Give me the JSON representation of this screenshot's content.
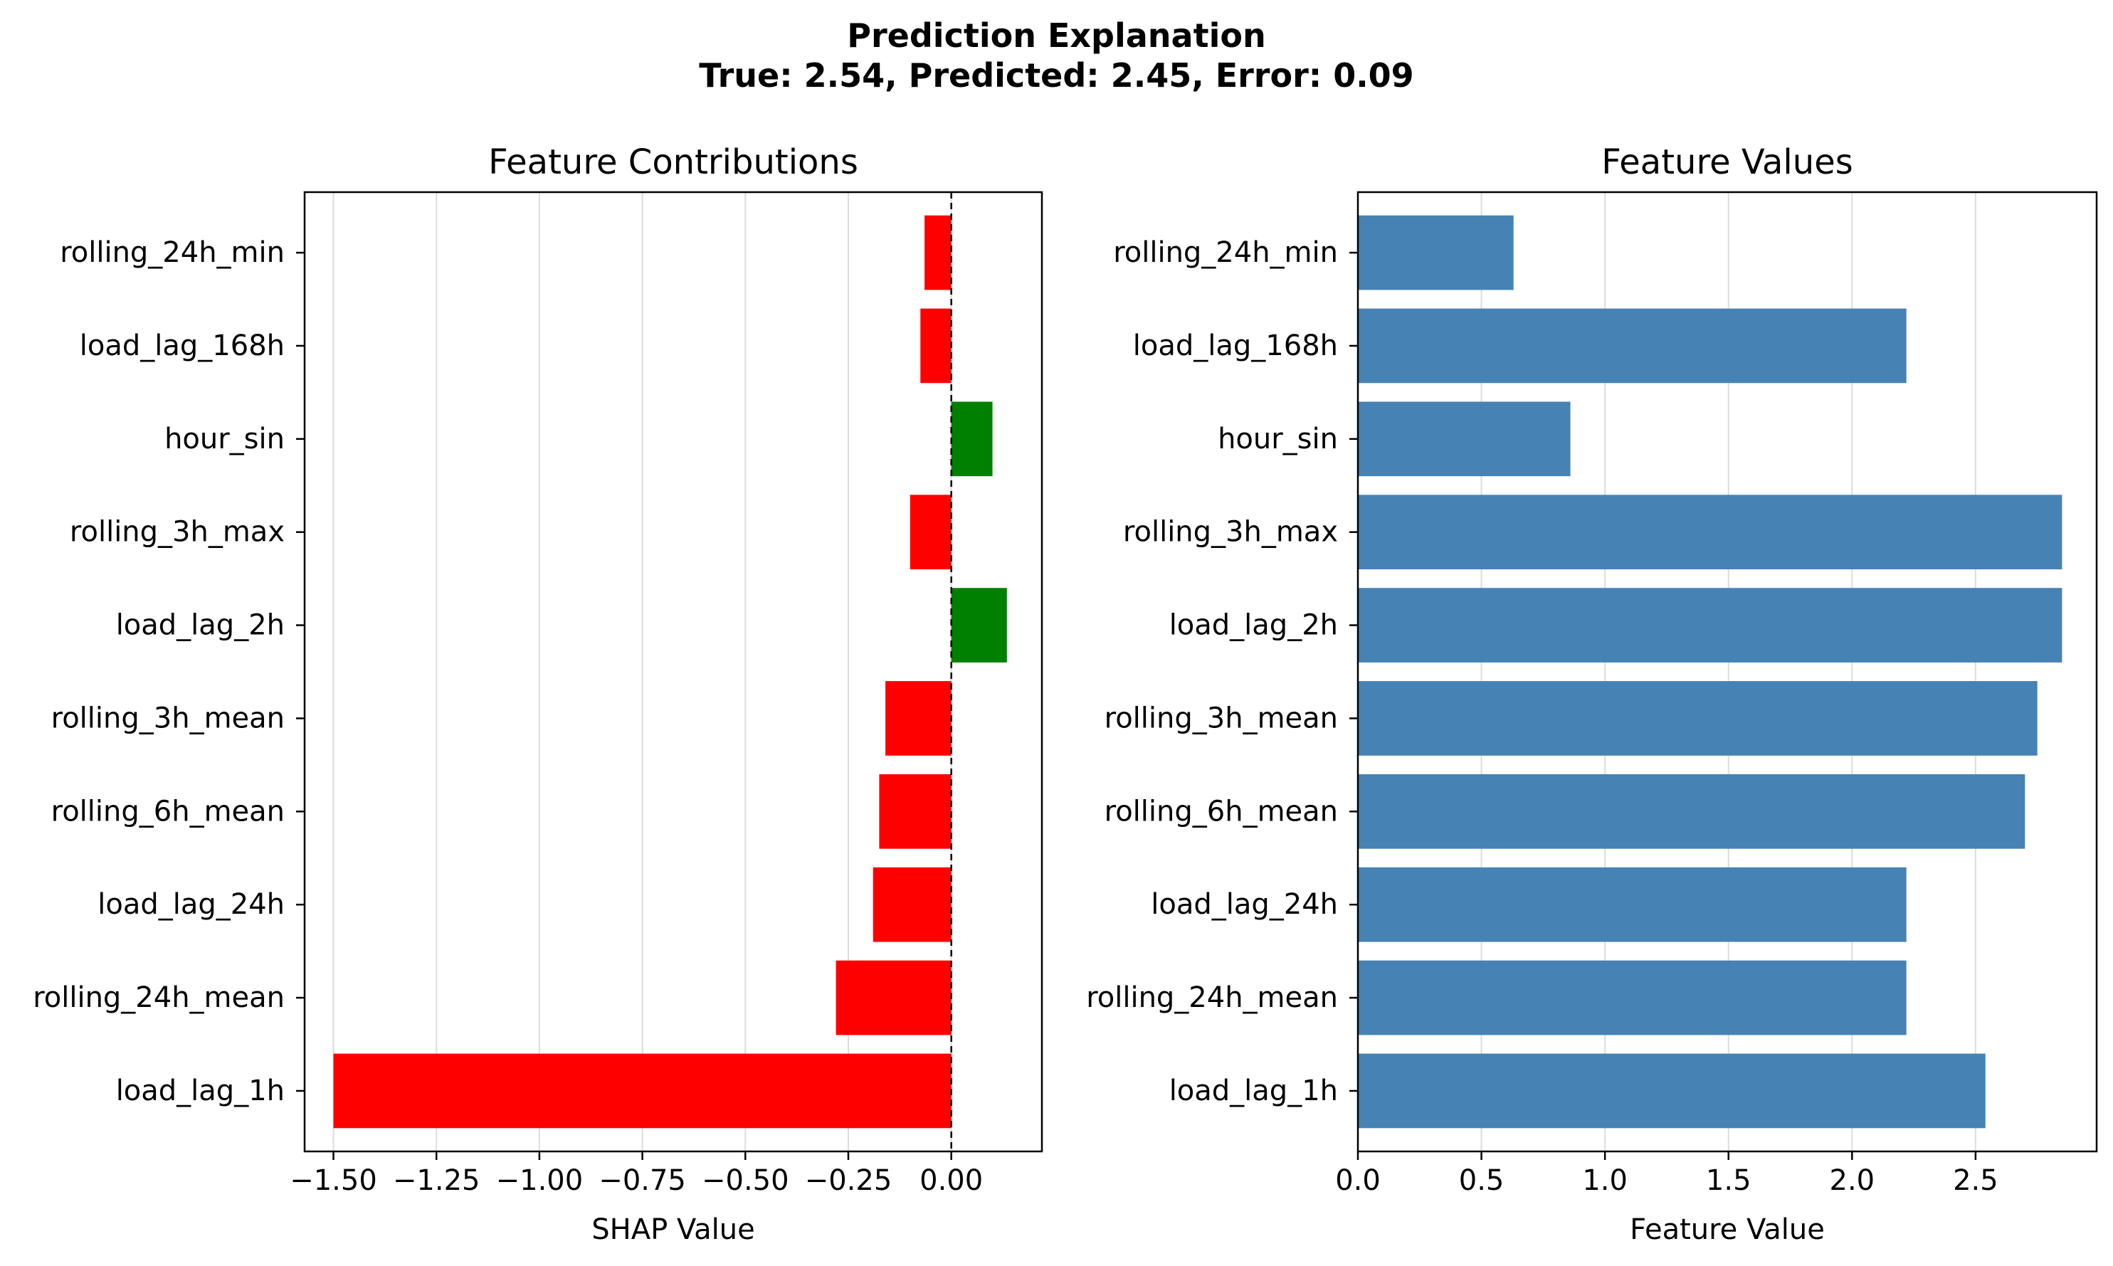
{
  "figure": {
    "title_line1": "Prediction Explanation",
    "title_line2": "True: 2.54, Predicted: 2.45, Error: 0.09"
  },
  "chart_data": [
    {
      "type": "bar",
      "orientation": "horizontal",
      "title": "Feature Contributions",
      "xlabel": "SHAP Value",
      "ylabel": "",
      "categories": [
        "load_lag_1h",
        "rolling_24h_mean",
        "load_lag_24h",
        "rolling_6h_mean",
        "rolling_3h_mean",
        "load_lag_2h",
        "rolling_3h_max",
        "hour_sin",
        "load_lag_168h",
        "rolling_24h_min"
      ],
      "values": [
        -1.5,
        -0.28,
        -0.19,
        -0.175,
        -0.16,
        0.135,
        -0.1,
        0.1,
        -0.075,
        -0.065
      ],
      "colors": {
        "positive": "#008000",
        "negative": "#ff0000"
      },
      "xlim": [
        -1.57,
        0.22
      ],
      "xticks": [
        -1.5,
        -1.25,
        -1.0,
        -0.75,
        -0.5,
        -0.25,
        0.0
      ],
      "xtick_labels": [
        "−1.50",
        "−1.25",
        "−1.00",
        "−0.75",
        "−0.50",
        "−0.25",
        "0.00"
      ],
      "reference_line": 0.0,
      "grid": "x"
    },
    {
      "type": "bar",
      "orientation": "horizontal",
      "title": "Feature Values",
      "xlabel": "Feature Value",
      "ylabel": "",
      "categories": [
        "load_lag_1h",
        "rolling_24h_mean",
        "load_lag_24h",
        "rolling_6h_mean",
        "rolling_3h_mean",
        "load_lag_2h",
        "rolling_3h_max",
        "hour_sin",
        "load_lag_168h",
        "rolling_24h_min"
      ],
      "values": [
        2.54,
        2.22,
        2.22,
        2.7,
        2.75,
        2.85,
        2.85,
        0.86,
        2.22,
        0.63
      ],
      "color": "#4682b4",
      "xlim": [
        0,
        2.99
      ],
      "xticks": [
        0,
        0.5,
        1.0,
        1.5,
        2.0,
        2.5
      ],
      "xtick_labels": [
        "0.0",
        "0.5",
        "1.0",
        "1.5",
        "2.0",
        "2.5"
      ],
      "grid": "x"
    }
  ]
}
